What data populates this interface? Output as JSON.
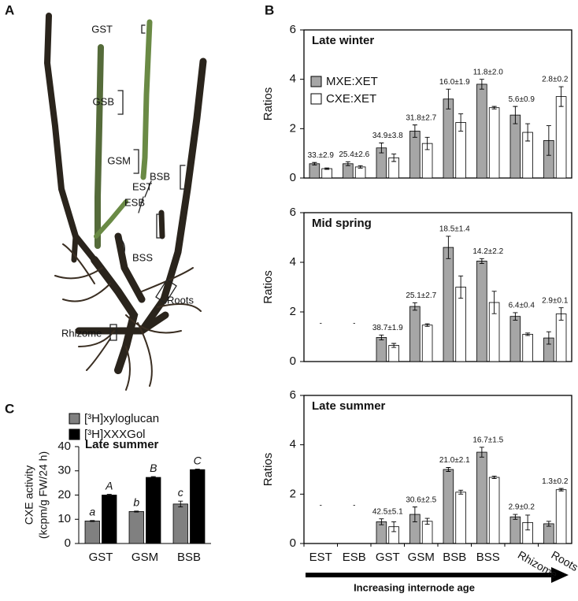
{
  "panel_labels": [
    "A",
    "B",
    "C"
  ],
  "photo": {
    "labels": [
      "GST",
      "GSB",
      "GSM",
      "BSB",
      "EST",
      "ESB",
      "BSS",
      "Roots",
      "Rhizome"
    ]
  },
  "chart_data": [
    {
      "type": "bar",
      "title": "Late winter",
      "ylabel": "Ratios",
      "ylim": [
        0,
        6
      ],
      "yticks": [
        0,
        2,
        4,
        6
      ],
      "annotations": [
        "33.±2.9",
        "25.4±2.6",
        "34.9±3.8",
        "31.8±2.7",
        "16.0±1.9",
        "11.8±2.0",
        "5.6±0.9",
        "2.8±0.2"
      ],
      "series": [
        {
          "name": "MXE:XET",
          "color": "#a6a6a6",
          "values": [
            0.58,
            0.58,
            1.22,
            1.9,
            3.2,
            3.8,
            2.55,
            1.52
          ],
          "errors": [
            0.05,
            0.08,
            0.2,
            0.25,
            0.4,
            0.2,
            0.35,
            0.6
          ]
        },
        {
          "name": "CXE:XET",
          "color": "#ffffff",
          "values": [
            0.38,
            0.45,
            0.82,
            1.4,
            2.25,
            2.85,
            1.85,
            3.3
          ],
          "errors": [
            0.03,
            0.05,
            0.15,
            0.25,
            0.35,
            0.05,
            0.35,
            0.4
          ]
        }
      ]
    },
    {
      "type": "bar",
      "title": "Mid spring",
      "ylabel": "Ratios",
      "ylim": [
        0,
        6
      ],
      "yticks": [
        0,
        2,
        4,
        6
      ],
      "annotations": [
        "-",
        "-",
        "38.7±1.9",
        "25.1±2.7",
        "18.5±1.4",
        "14.2±2.2",
        "6.4±0.4",
        "2.9±0.1"
      ],
      "series": [
        {
          "color": "#a6a6a6",
          "values": [
            null,
            null,
            0.97,
            2.22,
            4.6,
            4.05,
            1.82,
            0.95
          ],
          "errors": [
            null,
            null,
            0.1,
            0.15,
            0.45,
            0.1,
            0.15,
            0.25
          ]
        },
        {
          "color": "#ffffff",
          "values": [
            null,
            null,
            0.65,
            1.47,
            3.0,
            2.38,
            1.1,
            1.92
          ],
          "errors": [
            null,
            null,
            0.08,
            0.05,
            0.45,
            0.45,
            0.05,
            0.25
          ]
        }
      ]
    },
    {
      "type": "bar",
      "title": "Late summer",
      "ylabel": "Ratios",
      "xlabel": "Increasing internode age",
      "ylim": [
        0,
        6
      ],
      "yticks": [
        0,
        2,
        4,
        6
      ],
      "categories": [
        "EST",
        "ESB",
        "GST",
        "GSM",
        "BSB",
        "BSS",
        "Rhizome",
        "Roots"
      ],
      "annotations": [
        "-",
        "-",
        "42.5±5.1",
        "30.6±2.5",
        "21.0±2.1",
        "16.7±1.5",
        "2.9±0.2",
        "1.3±0.2"
      ],
      "series": [
        {
          "color": "#a6a6a6",
          "values": [
            null,
            null,
            0.88,
            1.18,
            3.0,
            3.7,
            1.08,
            0.8
          ],
          "errors": [
            null,
            null,
            0.12,
            0.3,
            0.08,
            0.2,
            0.1,
            0.1
          ]
        },
        {
          "color": "#ffffff",
          "values": [
            null,
            null,
            0.68,
            0.9,
            2.08,
            2.68,
            0.85,
            2.18
          ],
          "errors": [
            null,
            null,
            0.2,
            0.12,
            0.08,
            0.05,
            0.3,
            0.05
          ]
        }
      ]
    },
    {
      "type": "bar",
      "title": "Late summer",
      "ylabel": [
        "CXE activity",
        "(kcpm/g FW/24 h)"
      ],
      "ylim": [
        0,
        40
      ],
      "yticks": [
        0,
        10,
        20,
        30,
        40
      ],
      "categories": [
        "GST",
        "GSM",
        "BSB"
      ],
      "series": [
        {
          "name": "[³H]xyloglucan",
          "color": "#808080",
          "values": [
            9.3,
            13.2,
            16.3
          ],
          "errors": [
            0.2,
            0.2,
            1.2
          ],
          "annotations": [
            "a",
            "b",
            "c"
          ]
        },
        {
          "name": "[³H]XXXGol",
          "color": "#000000",
          "values": [
            20,
            27.3,
            30.5
          ],
          "errors": [
            0.3,
            0.3,
            0.2
          ],
          "annotations": [
            "A",
            "B",
            "C"
          ]
        }
      ]
    }
  ]
}
